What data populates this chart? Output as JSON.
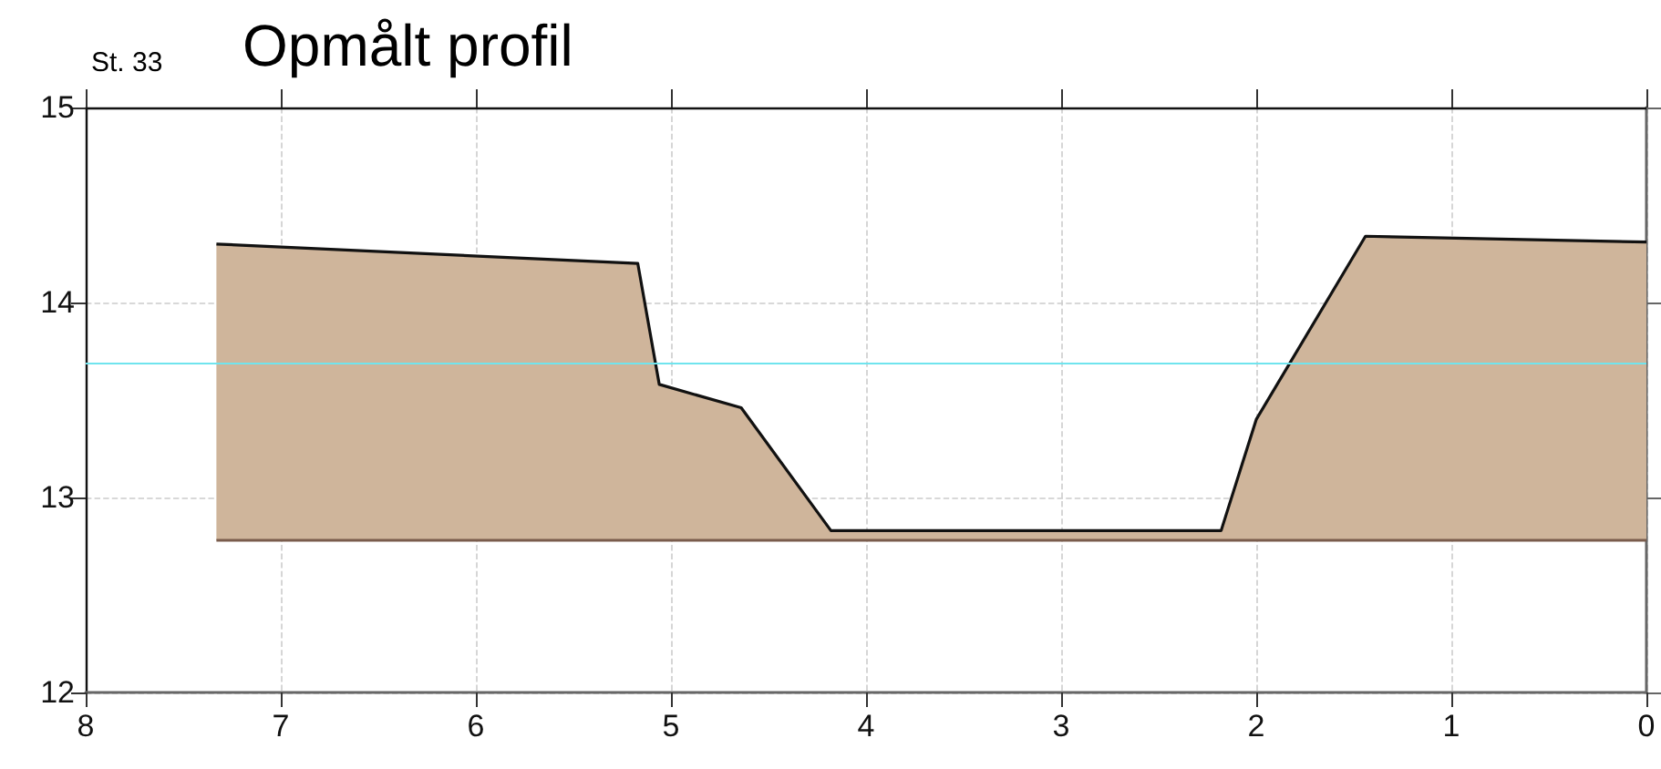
{
  "chart_data": {
    "type": "area",
    "title": "Opmålt profil",
    "subtitle": "St. 33",
    "x": [
      7.33,
      5.17,
      5.06,
      4.64,
      4.18,
      2.18,
      2.0,
      1.44,
      0
    ],
    "series": [
      {
        "color": "#cfb59b",
        "values": [
          14.3,
          14.2,
          13.58,
          13.46,
          12.83,
          12.83,
          13.4,
          14.34,
          14.31
        ]
      },
      {
        "type": "line",
        "color": "#7a5c4c",
        "x": [
          7.33,
          0
        ],
        "values": [
          12.78,
          12.78
        ]
      }
    ],
    "xlim": [
      8,
      0
    ],
    "xticks": [
      8,
      7,
      6,
      5,
      4,
      3,
      2,
      1,
      0
    ],
    "ylim": [
      12,
      15
    ],
    "yticks": [
      12,
      13,
      14,
      15
    ],
    "grid": true,
    "ref_lines": [
      {
        "axis": "y",
        "value": 13.69,
        "label": null,
        "color": "#70e4ee"
      }
    ]
  }
}
